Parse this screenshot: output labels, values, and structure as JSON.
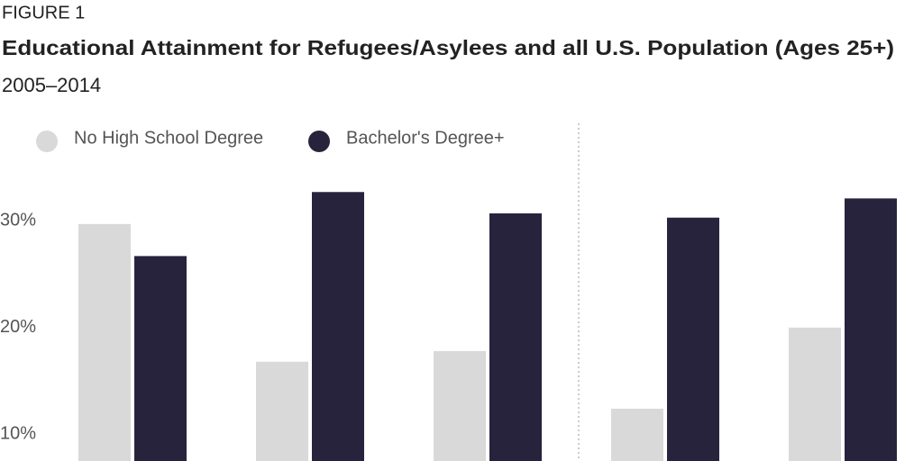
{
  "chart_data": {
    "type": "bar",
    "figure_label": "FIGURE 1",
    "title": "Educational Attainment for Refugees/Asylees and all U.S. Population (Ages 25+)",
    "subtitle": "2005–2014",
    "categories": [
      null,
      null,
      null,
      null,
      null
    ],
    "series": [
      {
        "name": "No High School Degree",
        "color": "#d9d9d9",
        "values": [
          29.7,
          16.8,
          17.8,
          12.4,
          20.0
        ]
      },
      {
        "name": "Bachelor's Degree+",
        "color": "#28233d",
        "values": [
          26.7,
          32.7,
          30.7,
          30.3,
          32.1
        ]
      }
    ],
    "ylim": [
      7.5,
      35
    ],
    "yticks": [
      {
        "value": 10,
        "label": "10%"
      },
      {
        "value": 20,
        "label": "20%"
      },
      {
        "value": 30,
        "label": "30%"
      }
    ],
    "legend": "top-left"
  }
}
